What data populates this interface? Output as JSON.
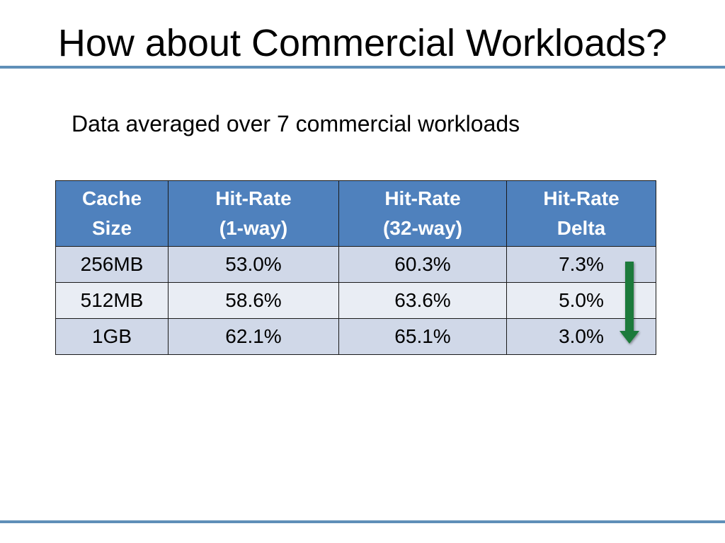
{
  "slide": {
    "title": "How about Commercial Workloads?",
    "subtitle": "Data averaged over 7 commercial workloads"
  },
  "table": {
    "headers": [
      {
        "line1": "Cache",
        "line2": "Size"
      },
      {
        "line1": "Hit-Rate",
        "line2": "(1-way)"
      },
      {
        "line1": "Hit-Rate",
        "line2": "(32-way)"
      },
      {
        "line1": "Hit-Rate",
        "line2": "Delta"
      }
    ],
    "rows": [
      [
        "256MB",
        "53.0%",
        "60.3%",
        "7.3%"
      ],
      [
        "512MB",
        "58.6%",
        "63.6%",
        "5.0%"
      ],
      [
        "1GB",
        "62.1%",
        "65.1%",
        "3.0%"
      ]
    ]
  },
  "colors": {
    "header_fill": "#4f81bd",
    "row_odd": "#d0d8e8",
    "row_even": "#e9edf4",
    "rule": "#5f8fb8",
    "arrow": "#1e7a3a"
  },
  "icons": {
    "delta_trend": "down-arrow-icon"
  }
}
